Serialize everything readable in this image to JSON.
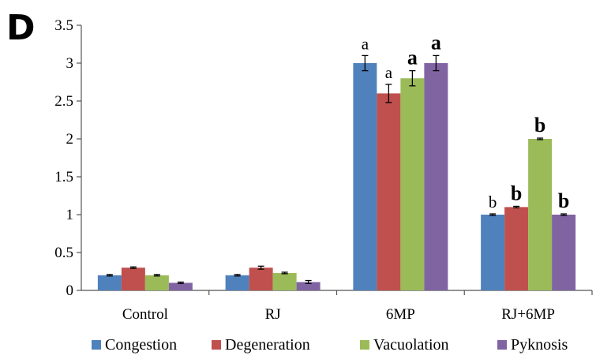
{
  "panel_label": "D",
  "chart_data": {
    "type": "bar",
    "categories": [
      "Control",
      "RJ",
      "6MP",
      "RJ+6MP"
    ],
    "ylim": [
      0,
      3.5
    ],
    "yticks": [
      "0",
      "0.5",
      "1",
      "1.5",
      "2",
      "2.5",
      "3",
      "3.5"
    ],
    "grid": false,
    "legend_position": "bottom",
    "series": [
      {
        "name": "Congestion",
        "color": "#4f81bd",
        "values": [
          0.2,
          0.2,
          3.0,
          1.0
        ],
        "errors": [
          0.01,
          0.01,
          0.1,
          0.01
        ],
        "labels": [
          "",
          "",
          "a",
          "b"
        ],
        "bold": [
          false,
          false,
          false,
          false
        ]
      },
      {
        "name": "Degeneration",
        "color": "#c0504d",
        "values": [
          0.3,
          0.3,
          2.6,
          1.1
        ],
        "errors": [
          0.01,
          0.02,
          0.12,
          0.01
        ],
        "labels": [
          "",
          "",
          "a",
          "b"
        ],
        "bold": [
          false,
          false,
          false,
          true
        ]
      },
      {
        "name": "Vacuolation",
        "color": "#9bbb59",
        "values": [
          0.2,
          0.23,
          2.8,
          2.0
        ],
        "errors": [
          0.01,
          0.01,
          0.1,
          0.01
        ],
        "labels": [
          "",
          "",
          "a",
          "b"
        ],
        "bold": [
          false,
          false,
          true,
          true
        ]
      },
      {
        "name": "Pyknosis",
        "color": "#8064a2",
        "values": [
          0.1,
          0.11,
          3.0,
          1.0
        ],
        "errors": [
          0.01,
          0.02,
          0.1,
          0.01
        ],
        "labels": [
          "",
          "",
          "a",
          "b"
        ],
        "bold": [
          false,
          false,
          true,
          true
        ]
      }
    ]
  }
}
